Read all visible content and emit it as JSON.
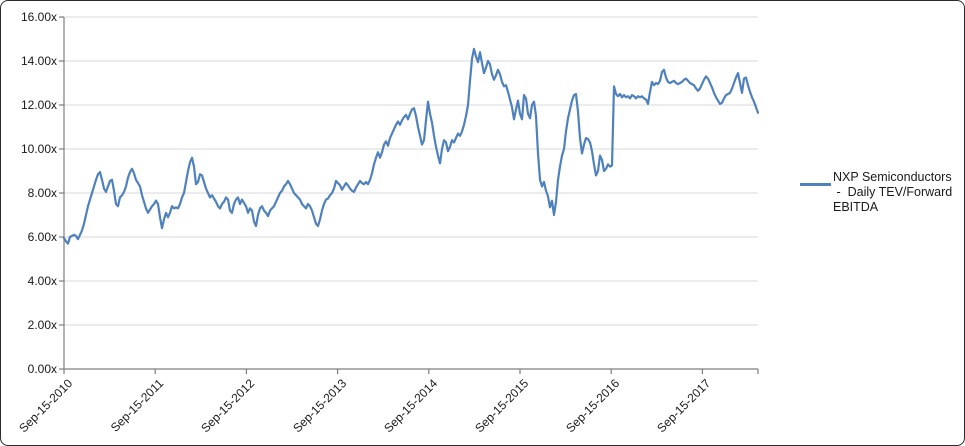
{
  "figure": {
    "background": "#ffffff",
    "border_color": "#2b2b2b",
    "gridline_color": "#d9d9d9",
    "axis_color": "#7f7f7f"
  },
  "legend": {
    "label": "NXP Semiconductors\n -  Daily TEV/Forward\nEBITDA",
    "series_color": "#4f81bd"
  },
  "chart_data": {
    "type": "line",
    "title": "",
    "xlabel": "",
    "ylabel": "",
    "grid": "horizontal",
    "legend_position": "right",
    "ylim": [
      0,
      16
    ],
    "y_ticks": [
      16,
      14,
      12,
      10,
      8,
      6,
      4,
      2,
      0
    ],
    "y_tick_labels": [
      "16.00x",
      "14.00x",
      "12.00x",
      "10.00x",
      "8.00x",
      "6.00x",
      "4.00x",
      "2.00x",
      "0.00x"
    ],
    "x_tick_labels": [
      "Sep-15-2010",
      "Sep-15-2011",
      "Sep-15-2012",
      "Sep-15-2013",
      "Sep-15-2014",
      "Sep-15-2015",
      "Sep-15-2016",
      "Sep-15-2017"
    ],
    "series": [
      {
        "name": "NXP Semiconductors -  Daily TEV/Forward EBITDA",
        "color": "#4f81bd",
        "x_start": "Sep-15-2010",
        "x_step_days": 8,
        "unit": "x (TEV/Forward EBITDA multiple)",
        "values": [
          5.95,
          5.8,
          5.7,
          6.0,
          6.05,
          6.1,
          6.05,
          5.9,
          6.1,
          6.3,
          6.6,
          7.0,
          7.4,
          7.7,
          8.0,
          8.3,
          8.6,
          8.85,
          8.95,
          8.6,
          8.2,
          8.05,
          8.3,
          8.55,
          8.6,
          8.1,
          7.5,
          7.4,
          7.8,
          7.9,
          8.05,
          8.3,
          8.7,
          8.95,
          9.1,
          8.9,
          8.6,
          8.45,
          8.3,
          7.9,
          7.6,
          7.3,
          7.1,
          7.25,
          7.4,
          7.5,
          7.65,
          7.5,
          6.9,
          6.4,
          6.8,
          7.1,
          6.9,
          7.1,
          7.4,
          7.3,
          7.35,
          7.3,
          7.5,
          7.8,
          8.0,
          8.5,
          9.0,
          9.4,
          9.6,
          9.2,
          8.4,
          8.5,
          8.85,
          8.8,
          8.5,
          8.2,
          8.0,
          7.8,
          7.9,
          7.75,
          7.6,
          7.4,
          7.3,
          7.5,
          7.6,
          7.8,
          7.7,
          7.2,
          7.1,
          7.5,
          7.7,
          7.8,
          7.5,
          7.7,
          7.55,
          7.4,
          7.1,
          7.3,
          7.2,
          6.7,
          6.5,
          7.0,
          7.3,
          7.4,
          7.2,
          7.1,
          6.95,
          7.2,
          7.3,
          7.4,
          7.6,
          7.8,
          8.0,
          8.1,
          8.3,
          8.4,
          8.55,
          8.4,
          8.2,
          8.0,
          7.9,
          7.8,
          7.7,
          7.5,
          7.4,
          7.3,
          7.5,
          7.4,
          7.2,
          6.9,
          6.6,
          6.5,
          6.8,
          7.2,
          7.5,
          7.7,
          7.75,
          7.9,
          8.0,
          8.2,
          8.55,
          8.45,
          8.35,
          8.15,
          8.3,
          8.45,
          8.35,
          8.2,
          8.1,
          8.05,
          8.25,
          8.4,
          8.55,
          8.45,
          8.4,
          8.5,
          8.4,
          8.6,
          8.9,
          9.3,
          9.6,
          9.85,
          9.6,
          9.85,
          10.2,
          10.35,
          10.15,
          10.5,
          10.7,
          10.9,
          11.1,
          11.25,
          11.1,
          11.3,
          11.45,
          11.55,
          11.35,
          11.6,
          11.8,
          11.85,
          11.5,
          11.0,
          10.6,
          10.2,
          10.4,
          11.3,
          12.15,
          11.6,
          11.2,
          10.6,
          10.1,
          9.7,
          9.35,
          10.0,
          10.4,
          10.3,
          9.9,
          10.1,
          10.4,
          10.3,
          10.5,
          10.7,
          10.6,
          10.8,
          11.1,
          11.5,
          12.0,
          13.1,
          14.1,
          14.55,
          14.2,
          13.95,
          14.4,
          13.9,
          13.45,
          13.7,
          14.0,
          13.85,
          13.4,
          13.15,
          13.35,
          13.6,
          13.4,
          13.05,
          12.85,
          12.9,
          12.6,
          12.25,
          11.9,
          11.35,
          11.8,
          12.2,
          11.6,
          11.35,
          12.45,
          12.3,
          11.6,
          11.4,
          12.0,
          12.15,
          11.5,
          9.8,
          8.6,
          8.3,
          8.5,
          8.1,
          7.85,
          7.35,
          7.65,
          7.0,
          7.6,
          8.6,
          9.2,
          9.7,
          10.0,
          10.8,
          11.4,
          11.8,
          12.2,
          12.45,
          12.5,
          11.7,
          10.5,
          9.8,
          10.2,
          10.5,
          10.45,
          10.3,
          9.9,
          9.3,
          8.8,
          9.0,
          9.7,
          9.5,
          9.0,
          9.1,
          9.3,
          9.2,
          9.25,
          12.85,
          12.5,
          12.4,
          12.5,
          12.35,
          12.45,
          12.35,
          12.4,
          12.3,
          12.45,
          12.4,
          12.3,
          12.4,
          12.35,
          12.4,
          12.3,
          12.25,
          12.05,
          12.6,
          13.05,
          12.9,
          13.0,
          12.95,
          13.1,
          13.5,
          13.6,
          13.25,
          13.05,
          13.0,
          13.05,
          13.1,
          13.0,
          12.95,
          13.0,
          13.05,
          13.15,
          13.2,
          13.1,
          13.0,
          12.95,
          12.9,
          12.75,
          12.65,
          12.75,
          12.95,
          13.15,
          13.3,
          13.2,
          13.0,
          12.8,
          12.55,
          12.35,
          12.2,
          12.05,
          12.1,
          12.3,
          12.45,
          12.5,
          12.55,
          12.75,
          13.0,
          13.25,
          13.45,
          13.0,
          12.55,
          13.2,
          13.25,
          12.9,
          12.6,
          12.35,
          12.15,
          11.9,
          11.65
        ]
      }
    ]
  }
}
